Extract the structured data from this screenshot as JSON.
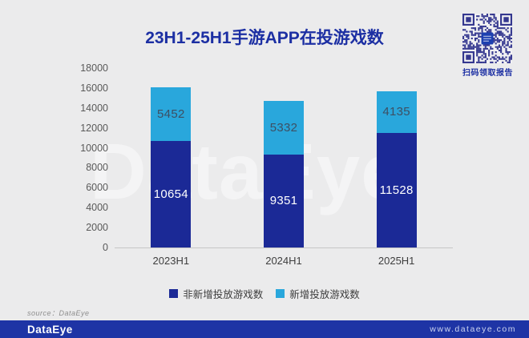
{
  "title": "23H1-25H1手游APP在投游戏数",
  "watermark": "DataEye",
  "qr": {
    "caption": "扫码领取报告",
    "color": "#34378f",
    "logo_color": "#1d40b0"
  },
  "chart_data": {
    "type": "stacked-bar",
    "categories": [
      "2023H1",
      "2024H1",
      "2025H1"
    ],
    "series": [
      {
        "name": "非新增投放游戏数",
        "color": "#1b2996",
        "label_color": "#ffffff",
        "values": [
          10654,
          9351,
          11528
        ]
      },
      {
        "name": "新增投放游戏数",
        "color": "#29a7dc",
        "label_color": "#3d4f63",
        "values": [
          5452,
          5332,
          4135
        ]
      }
    ],
    "ylim": [
      0,
      18000
    ],
    "ytick_step": 2000,
    "grid": false,
    "legend_position": "bottom",
    "xlabel": "",
    "ylabel": ""
  },
  "source_note": "source：DataEye",
  "footer": {
    "logo": "DataEye",
    "url": "www.dataeye.com"
  },
  "colors": {
    "background": "#ebebec",
    "title": "#1c2fa3",
    "footer_bg": "#1e34a5",
    "axis": "#c6c6c6"
  }
}
